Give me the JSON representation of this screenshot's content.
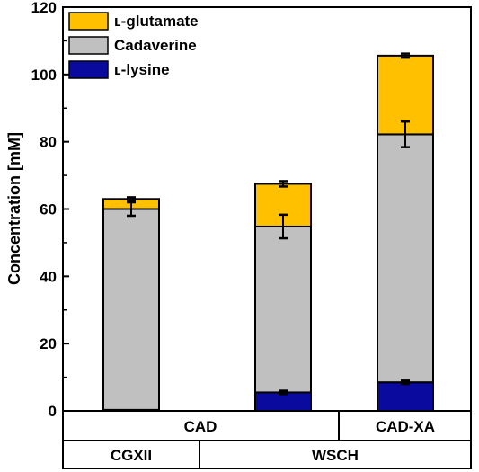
{
  "chart_data": {
    "type": "bar",
    "stacked": true,
    "ylabel": "Concentration [mM]",
    "ylim": [
      0,
      120
    ],
    "yticks": [
      0,
      20,
      40,
      60,
      80,
      100,
      120
    ],
    "grid": false,
    "legend_position": "top-left",
    "categories": [
      "CGXII CAD",
      "WSCH CAD",
      "WSCH CAD-XA"
    ],
    "series": [
      {
        "name": "ʟ-lysine",
        "color": "#0a0a9e",
        "values": [
          0.3,
          5.5,
          8.5
        ],
        "errors": [
          0,
          0.5,
          0.5
        ]
      },
      {
        "name": "Cadaverine",
        "color": "#c0c0c0",
        "values": [
          59.7,
          49.3,
          73.7
        ],
        "errors": [
          2.0,
          3.5,
          3.8
        ]
      },
      {
        "name": "ʟ-glutamate",
        "color": "#ffc000",
        "values": [
          3.0,
          12.7,
          23.4
        ],
        "errors": [
          0.5,
          0.8,
          0.6
        ]
      }
    ],
    "legend_entries": [
      "ʟ-glutamate",
      "Cadaverine",
      "ʟ-lysine"
    ],
    "group_rows": [
      {
        "labels": [
          "CAD",
          "CAD-XA"
        ]
      },
      {
        "labels": [
          "CGXII",
          "WSCH"
        ]
      }
    ]
  }
}
